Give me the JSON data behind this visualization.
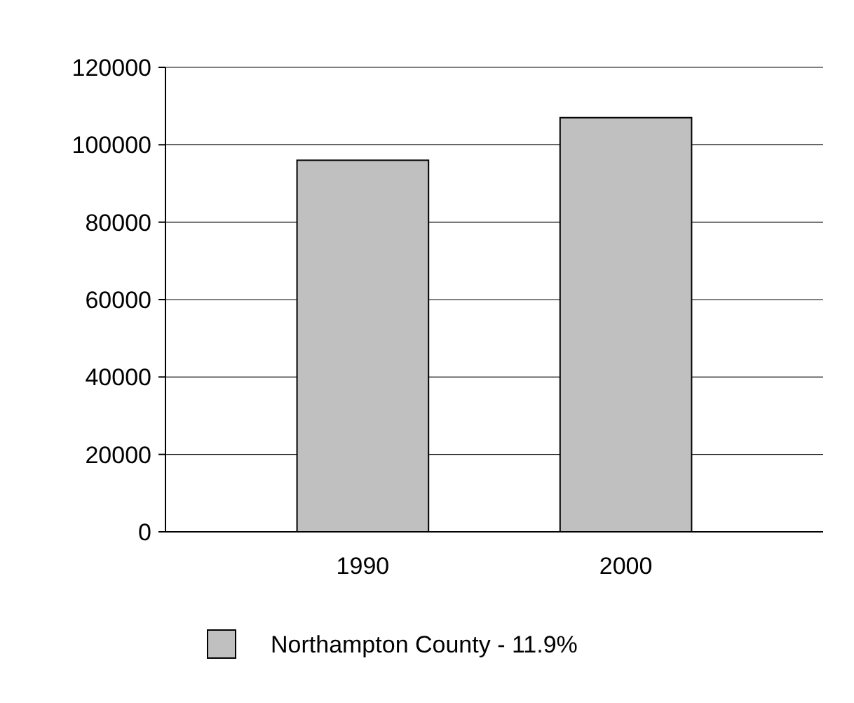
{
  "chart_data": {
    "type": "bar",
    "categories": [
      "1990",
      "2000"
    ],
    "series": [
      {
        "name": "Northampton County - 11.9%",
        "color": "#c0c0c0",
        "values": [
          96000,
          107000
        ]
      }
    ],
    "ylim": [
      0,
      120000
    ],
    "yticks": [
      0,
      20000,
      40000,
      60000,
      80000,
      100000,
      120000
    ],
    "grid": "y",
    "legend": "bottom"
  }
}
